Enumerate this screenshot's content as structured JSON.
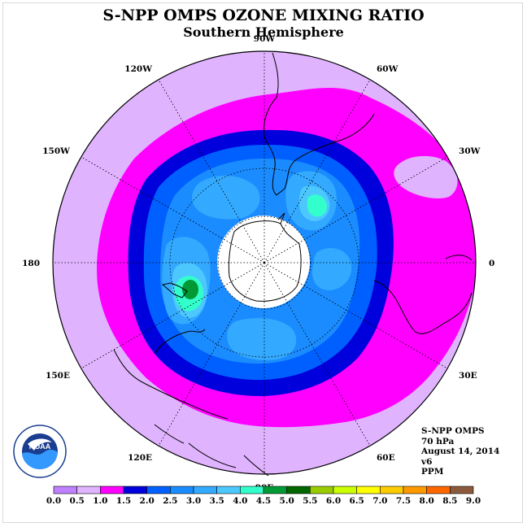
{
  "title": "S-NPP OMPS OZONE MIXING RATIO",
  "subtitle": "Southern Hemisphere",
  "longitude_labels": [
    {
      "text": "90W",
      "lon": -90
    },
    {
      "text": "60W",
      "lon": -60
    },
    {
      "text": "120W",
      "lon": -120
    },
    {
      "text": "30W",
      "lon": -30
    },
    {
      "text": "150W",
      "lon": -150
    },
    {
      "text": "0",
      "lon": 0
    },
    {
      "text": "180",
      "lon": 180
    },
    {
      "text": "30E",
      "lon": 30
    },
    {
      "text": "150E",
      "lon": 150
    },
    {
      "text": "60E",
      "lon": 60
    },
    {
      "text": "120E",
      "lon": 120
    },
    {
      "text": "90E",
      "lon": 90
    }
  ],
  "info": {
    "instrument": "S-NPP OMPS",
    "level": "70 hPa",
    "date": "August 14, 2014",
    "version": "v6",
    "units": "PPM"
  },
  "logo": {
    "text": "NOAA"
  },
  "colorbar": {
    "ticks": [
      "0.0",
      "0.5",
      "1.0",
      "1.5",
      "2.0",
      "2.5",
      "3.0",
      "3.5",
      "4.0",
      "4.5",
      "5.0",
      "5.5",
      "6.0",
      "6.5",
      "7.0",
      "7.5",
      "8.0",
      "8.5",
      "9.0"
    ],
    "colors": [
      "#bf80ff",
      "#e0b3ff",
      "#ff00ff",
      "#0000dd",
      "#0060ff",
      "#1a8cff",
      "#33aaff",
      "#4dc8ff",
      "#33ffcc",
      "#009933",
      "#006600",
      "#99cc00",
      "#ccff00",
      "#ffff00",
      "#ffcc00",
      "#ff9900",
      "#ff6600",
      "#ff0000",
      "#8b5a3c"
    ]
  },
  "colors": {
    "level_0_5": "#e0b3ff",
    "level_1_0": "#ff00ff",
    "level_1_5": "#0000dd",
    "level_2_0": "#0060ff",
    "level_2_5": "#1a8cff",
    "level_3_0": "#33aaff",
    "level_3_5": "#4dc8ff",
    "level_4_0": "#33ffcc",
    "level_4_5": "#009933",
    "polar_night": "#ffffff"
  }
}
